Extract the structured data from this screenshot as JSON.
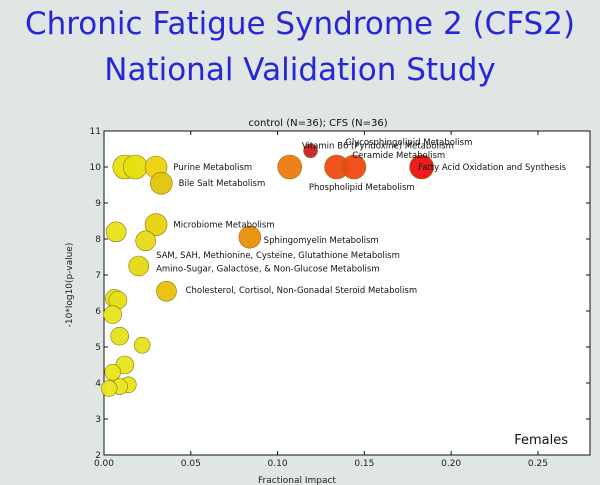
{
  "slide": {
    "title_line_1": "Chronic Fatigue Syndrome 2 (CFS2)",
    "title_line_2": "National Validation Study"
  },
  "chart_data": {
    "type": "scatter",
    "title": "control (N=36); CFS (N=36)",
    "xlabel": "Fractional Impact",
    "ylabel": "-10*log10(p-value)",
    "xlim": [
      0.0,
      0.28
    ],
    "ylim": [
      2,
      11
    ],
    "x_ticks": [
      "0.00",
      "0.05",
      "0.10",
      "0.15",
      "0.20",
      "0.25"
    ],
    "y_ticks": [
      "2",
      "3",
      "4",
      "5",
      "6",
      "7",
      "8",
      "9",
      "10",
      "11"
    ],
    "corner_label": "Females",
    "grid": false,
    "points": [
      {
        "x": 0.012,
        "y": 10.0,
        "size": 12,
        "color": "#e8de10"
      },
      {
        "x": 0.018,
        "y": 10.0,
        "size": 12,
        "color": "#e8de10"
      },
      {
        "x": 0.03,
        "y": 10.0,
        "size": 11,
        "color": "#ecd20c"
      },
      {
        "x": 0.033,
        "y": 9.55,
        "size": 11,
        "color": "#e4c208"
      },
      {
        "x": 0.03,
        "y": 8.4,
        "size": 11,
        "color": "#e8d20c"
      },
      {
        "x": 0.007,
        "y": 8.2,
        "size": 10,
        "color": "#e8e21a"
      },
      {
        "x": 0.024,
        "y": 7.95,
        "size": 10,
        "color": "#e8d818"
      },
      {
        "x": 0.02,
        "y": 7.25,
        "size": 10,
        "color": "#e4da14"
      },
      {
        "x": 0.036,
        "y": 6.55,
        "size": 10,
        "color": "#ebbf0a"
      },
      {
        "x": 0.006,
        "y": 6.35,
        "size": 9,
        "color": "#e8e21a"
      },
      {
        "x": 0.008,
        "y": 6.3,
        "size": 9,
        "color": "#e4e01a"
      },
      {
        "x": 0.005,
        "y": 5.9,
        "size": 9,
        "color": "#e8e41c"
      },
      {
        "x": 0.009,
        "y": 5.3,
        "size": 9,
        "color": "#e4e01a"
      },
      {
        "x": 0.022,
        "y": 5.05,
        "size": 8,
        "color": "#e8e21c"
      },
      {
        "x": 0.012,
        "y": 4.5,
        "size": 9,
        "color": "#e8e41e"
      },
      {
        "x": 0.005,
        "y": 4.3,
        "size": 8,
        "color": "#e8e41e"
      },
      {
        "x": 0.014,
        "y": 3.95,
        "size": 8,
        "color": "#e8e41e"
      },
      {
        "x": 0.009,
        "y": 3.9,
        "size": 8,
        "color": "#e8e41e"
      },
      {
        "x": 0.003,
        "y": 3.85,
        "size": 8,
        "color": "#e8e41e"
      },
      {
        "x": 0.084,
        "y": 8.05,
        "size": 11,
        "color": "#e8900a"
      },
      {
        "x": 0.107,
        "y": 10.0,
        "size": 12,
        "color": "#ee7a10"
      },
      {
        "x": 0.119,
        "y": 10.45,
        "size": 7,
        "color": "#c8202a"
      },
      {
        "x": 0.134,
        "y": 10.0,
        "size": 12,
        "color": "#f04a14"
      },
      {
        "x": 0.144,
        "y": 10.0,
        "size": 12,
        "color": "#f04812"
      },
      {
        "x": 0.183,
        "y": 10.0,
        "size": 12,
        "color": "#ee1010"
      }
    ],
    "annotations": [
      {
        "text": "Vitamin B6 (Pyridoxine) Metabolism",
        "x": 0.114,
        "y": 10.6
      },
      {
        "text": "Glycosphingolipid Metabolism",
        "x": 0.139,
        "y": 10.7
      },
      {
        "text": "Ceramide Metabolism",
        "x": 0.143,
        "y": 10.33
      },
      {
        "text": "Purine Metabolism",
        "x": 0.04,
        "y": 10.0
      },
      {
        "text": "Fatty Acid Oxidation and Synthesis",
        "x": 0.181,
        "y": 10.0
      },
      {
        "text": "Bile Salt Metabolism",
        "x": 0.043,
        "y": 9.55
      },
      {
        "text": "Phospholipid Metabolism",
        "x": 0.118,
        "y": 9.44
      },
      {
        "text": "Microbiome Metabolism",
        "x": 0.04,
        "y": 8.4
      },
      {
        "text": "Sphingomyelin Metabolism",
        "x": 0.092,
        "y": 7.97
      },
      {
        "text": "SAM, SAH, Methionine, Cysteine, Glutathione Metabolism",
        "x": 0.03,
        "y": 7.55
      },
      {
        "text": "Amino-Sugar, Galactose, & Non-Glucose Metabolism",
        "x": 0.03,
        "y": 7.18
      },
      {
        "text": "Cholesterol, Cortisol, Non-Gonadal Steroid Metabolism",
        "x": 0.047,
        "y": 6.58
      }
    ]
  }
}
